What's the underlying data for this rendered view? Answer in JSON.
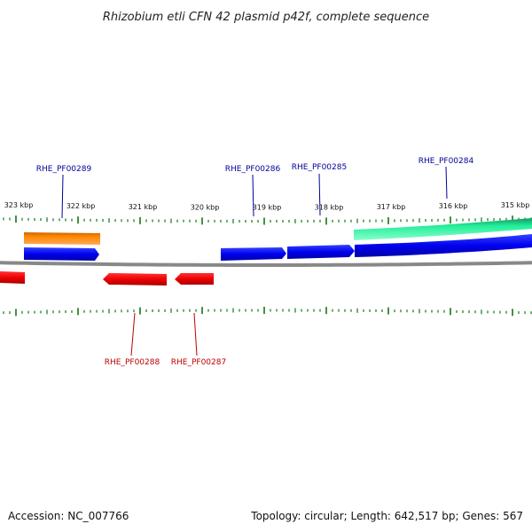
{
  "title": "Rhizobium etli CFN 42 plasmid p42f, complete sequence",
  "footer": {
    "accession": "Accession: NC_007766",
    "summary": "Topology: circular; Length: 642,517 bp; Genes: 567"
  },
  "colors": {
    "forward_cds": "#0000ee",
    "reverse_cds": "#ee0000",
    "orange_feature": "#ff8800",
    "green_feature": "#22ee99",
    "backbone": "#888888",
    "tick": "#117711",
    "forward_label": "#000099",
    "reverse_label": "#bb0000"
  },
  "scale": {
    "labels": [
      {
        "kbp": 323,
        "text": "323 kbp"
      },
      {
        "kbp": 322,
        "text": "322 kbp"
      },
      {
        "kbp": 321,
        "text": "321 kbp"
      },
      {
        "kbp": 320,
        "text": "320 kbp"
      },
      {
        "kbp": 319,
        "text": "319 kbp"
      },
      {
        "kbp": 318,
        "text": "318 kbp"
      },
      {
        "kbp": 317,
        "text": "317 kbp"
      },
      {
        "kbp": 316,
        "text": "316 kbp"
      },
      {
        "kbp": 315,
        "text": "315 kbp"
      }
    ]
  },
  "labels": {
    "forward": [
      {
        "name": "RHE_PF00289"
      },
      {
        "name": "RHE_PF00286"
      },
      {
        "name": "RHE_PF00285"
      },
      {
        "name": "RHE_PF00284"
      }
    ],
    "reverse": [
      {
        "name": "RHE_PF00288"
      },
      {
        "name": "RHE_PF00287"
      }
    ]
  }
}
